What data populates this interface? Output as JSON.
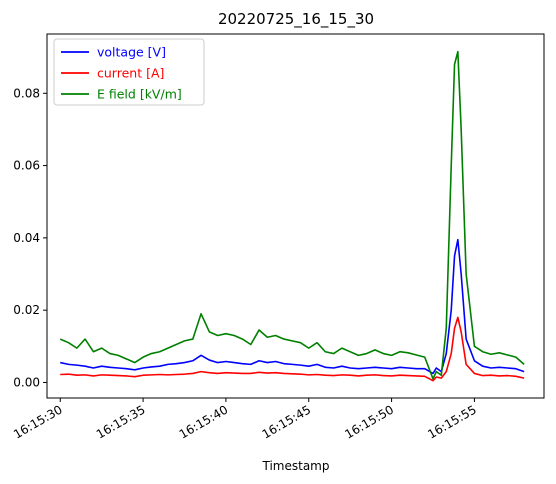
{
  "chart_data": {
    "type": "line",
    "title": "20220725_16_15_30",
    "xlabel": "Timestamp",
    "ylabel": "",
    "x_unit": "seconds after 16:15:30",
    "xlim": [
      "16:15:29.2",
      "16:15:59.2"
    ],
    "ylim": [
      -0.0043,
      0.0964
    ],
    "x_ticks": [
      "16:15:30",
      "16:15:35",
      "16:15:40",
      "16:15:45",
      "16:15:50",
      "16:15:55"
    ],
    "y_ticks": [
      "0.00",
      "0.02",
      "0.04",
      "0.06",
      "0.08"
    ],
    "legend_position": "top-left",
    "grid": false,
    "x": [
      0.0,
      0.5,
      1.0,
      1.5,
      2.0,
      2.5,
      3.0,
      3.5,
      4.0,
      4.5,
      5.0,
      5.5,
      6.0,
      6.5,
      7.0,
      7.5,
      8.0,
      8.5,
      9.0,
      9.5,
      10.0,
      10.5,
      11.0,
      11.5,
      12.0,
      12.5,
      13.0,
      13.5,
      14.0,
      14.5,
      15.0,
      15.5,
      16.0,
      16.5,
      17.0,
      17.5,
      18.0,
      18.5,
      19.0,
      19.5,
      20.0,
      20.5,
      21.0,
      21.5,
      22.0,
      22.5,
      22.7,
      23.0,
      23.3,
      23.6,
      23.8,
      24.0,
      24.2,
      24.5,
      25.0,
      25.5,
      26.0,
      26.5,
      27.0,
      27.5,
      28.0
    ],
    "series": [
      {
        "name": "voltage [V]",
        "color": "#0000ff",
        "values": [
          0.0055,
          0.005,
          0.0048,
          0.0045,
          0.004,
          0.0045,
          0.0042,
          0.004,
          0.0038,
          0.0035,
          0.004,
          0.0043,
          0.0045,
          0.005,
          0.0052,
          0.0055,
          0.006,
          0.0075,
          0.0062,
          0.0055,
          0.0058,
          0.0055,
          0.0052,
          0.005,
          0.006,
          0.0055,
          0.0058,
          0.0052,
          0.005,
          0.0048,
          0.0045,
          0.005,
          0.0042,
          0.004,
          0.0045,
          0.004,
          0.0038,
          0.004,
          0.0042,
          0.004,
          0.0038,
          0.0042,
          0.004,
          0.0038,
          0.0038,
          0.0025,
          0.004,
          0.003,
          0.008,
          0.02,
          0.035,
          0.0395,
          0.03,
          0.012,
          0.006,
          0.0045,
          0.004,
          0.0042,
          0.004,
          0.0038,
          0.003
        ]
      },
      {
        "name": "current [A]",
        "color": "#ff0000",
        "values": [
          0.0022,
          0.0023,
          0.002,
          0.0021,
          0.0018,
          0.0021,
          0.002,
          0.0019,
          0.0018,
          0.0016,
          0.002,
          0.0021,
          0.0022,
          0.0021,
          0.0022,
          0.0023,
          0.0025,
          0.003,
          0.0027,
          0.0025,
          0.0027,
          0.0026,
          0.0025,
          0.0025,
          0.0028,
          0.0026,
          0.0027,
          0.0025,
          0.0024,
          0.0023,
          0.0021,
          0.0022,
          0.002,
          0.0019,
          0.0021,
          0.002,
          0.0018,
          0.002,
          0.0021,
          0.0019,
          0.0018,
          0.002,
          0.0019,
          0.0018,
          0.0017,
          0.0005,
          0.0015,
          0.0012,
          0.003,
          0.008,
          0.015,
          0.018,
          0.014,
          0.005,
          0.0025,
          0.0019,
          0.002,
          0.0018,
          0.0019,
          0.0017,
          0.0012
        ]
      },
      {
        "name": "E field [kV/m]",
        "color": "#008000",
        "values": [
          0.012,
          0.011,
          0.0095,
          0.012,
          0.0085,
          0.0095,
          0.008,
          0.0075,
          0.0065,
          0.0055,
          0.007,
          0.008,
          0.0085,
          0.0095,
          0.0105,
          0.0115,
          0.012,
          0.019,
          0.014,
          0.013,
          0.0135,
          0.013,
          0.012,
          0.0105,
          0.0145,
          0.0125,
          0.013,
          0.012,
          0.0115,
          0.011,
          0.0095,
          0.011,
          0.0085,
          0.008,
          0.0095,
          0.0085,
          0.0075,
          0.008,
          0.009,
          0.008,
          0.0075,
          0.0085,
          0.0082,
          0.0076,
          0.007,
          0.001,
          0.003,
          0.002,
          0.015,
          0.06,
          0.088,
          0.0915,
          0.07,
          0.03,
          0.01,
          0.0085,
          0.0078,
          0.0082,
          0.0076,
          0.007,
          0.005
        ]
      }
    ]
  }
}
